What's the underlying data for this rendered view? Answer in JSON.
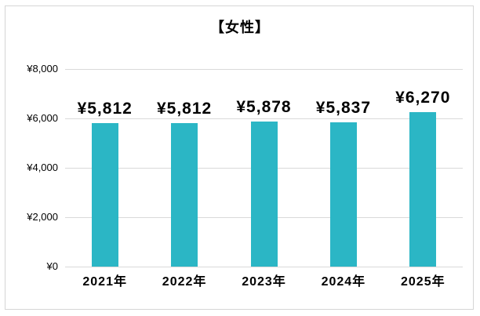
{
  "window": {
    "background_color": "#ffffff",
    "frame_border_color": "#d5d5d5"
  },
  "chart_data": {
    "type": "bar",
    "title": "【女性】",
    "categories": [
      "2021年",
      "2022年",
      "2023年",
      "2024年",
      "2025年"
    ],
    "values": [
      5812,
      5812,
      5878,
      5837,
      6270
    ],
    "data_labels": [
      "¥5,812",
      "¥5,812",
      "¥5,878",
      "¥5,837",
      "¥6,270"
    ],
    "y_ticks": [
      {
        "value": 0,
        "label": "¥0"
      },
      {
        "value": 2000,
        "label": "¥2,000"
      },
      {
        "value": 4000,
        "label": "¥4,000"
      },
      {
        "value": 6000,
        "label": "¥6,000"
      },
      {
        "value": 8000,
        "label": "¥8,000"
      }
    ],
    "xlabel": "",
    "ylabel": "",
    "ylim": [
      0,
      8000
    ],
    "grid": true,
    "legend": "none",
    "bar_color": "#2bb6c5",
    "gridline_color": "#d9d9d9",
    "text_color": "#000000"
  }
}
